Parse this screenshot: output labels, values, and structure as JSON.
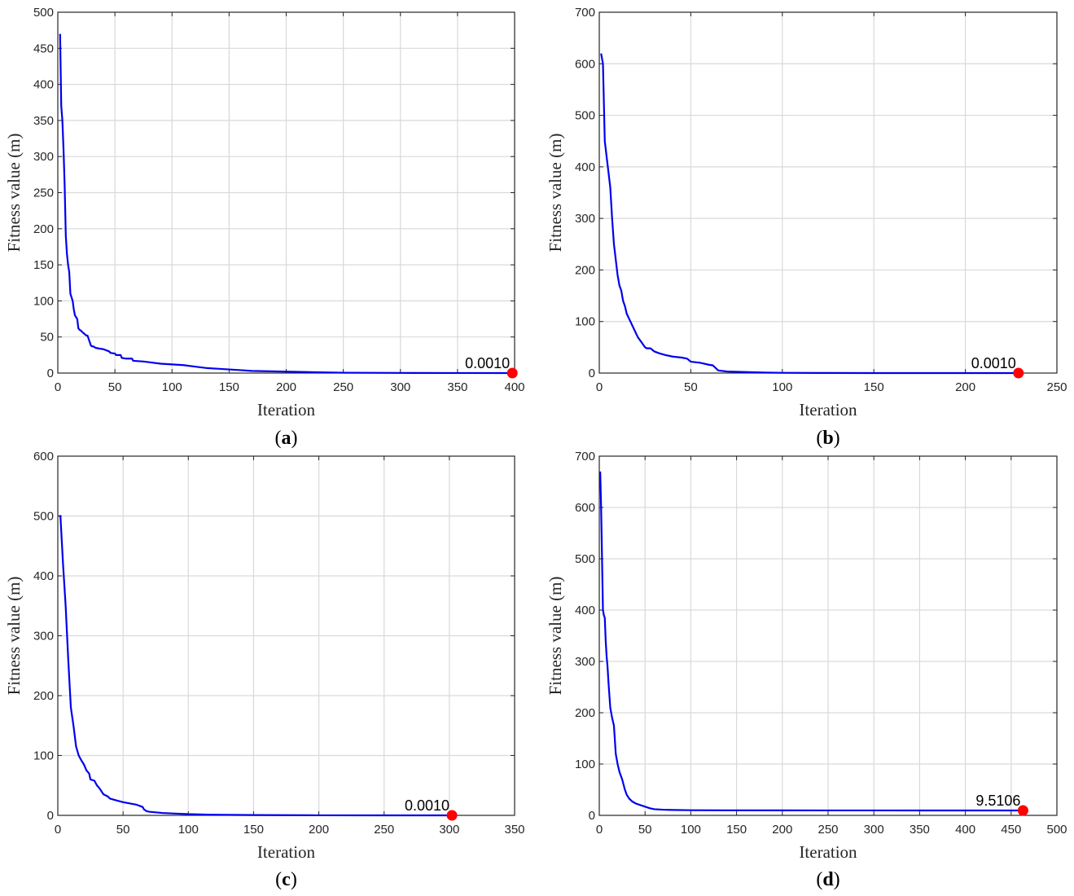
{
  "colors": {
    "line": "#0000ee",
    "marker": "#ff0000",
    "grid": "#d9d9d9",
    "axis": "#262626"
  },
  "chart_data": [
    {
      "type": "line",
      "panel_label": "a",
      "xlabel": "Iteration",
      "ylabel": "Fitness value (m)",
      "xlim": [
        0,
        400
      ],
      "ylim": [
        0,
        500
      ],
      "xticks": [
        0,
        50,
        100,
        150,
        200,
        250,
        300,
        350,
        400
      ],
      "yticks": [
        0,
        50,
        100,
        150,
        200,
        250,
        300,
        350,
        400,
        450,
        500
      ],
      "grid": true,
      "series": [
        {
          "x": [
            2,
            3,
            4,
            5,
            6,
            7,
            8,
            9,
            10,
            11,
            12,
            13,
            14,
            15,
            17,
            18,
            19,
            20,
            22,
            25,
            26,
            29,
            30,
            31,
            33,
            36,
            40,
            45,
            46,
            50,
            51,
            55,
            56,
            60,
            65,
            66,
            75,
            80,
            90,
            100,
            110,
            120,
            130,
            140,
            150,
            160,
            170,
            200,
            250,
            300,
            350,
            398
          ],
          "y": [
            470,
            370,
            350,
            310,
            260,
            190,
            165,
            150,
            140,
            110,
            105,
            100,
            88,
            80,
            75,
            62,
            60,
            59,
            56,
            52,
            52,
            38,
            37,
            37,
            35,
            34,
            33,
            30,
            28,
            27,
            25,
            25,
            21,
            20,
            20,
            17,
            16,
            15,
            13,
            12,
            11,
            9,
            7,
            6,
            5,
            4,
            3,
            2,
            0.5,
            0.2,
            0.05,
            0.001
          ]
        }
      ],
      "marker": {
        "x": 398,
        "y": 0.001,
        "label": "0.0010"
      }
    },
    {
      "type": "line",
      "panel_label": "b",
      "xlabel": "Iteration",
      "ylabel": "Fitness value (m)",
      "xlim": [
        0,
        250
      ],
      "ylim": [
        0,
        700
      ],
      "xticks": [
        0,
        50,
        100,
        150,
        200,
        250
      ],
      "yticks": [
        0,
        100,
        200,
        300,
        400,
        500,
        600,
        700
      ],
      "grid": true,
      "series": [
        {
          "x": [
            1,
            2,
            3,
            4,
            5,
            6,
            7,
            8,
            9,
            10,
            11,
            12,
            13,
            14,
            15,
            17,
            19,
            21,
            23,
            25,
            26,
            28,
            30,
            33,
            36,
            40,
            45,
            48,
            50,
            55,
            60,
            62,
            65,
            70,
            80,
            90,
            100,
            120,
            150,
            200,
            229
          ],
          "y": [
            620,
            600,
            450,
            420,
            390,
            360,
            300,
            250,
            220,
            190,
            170,
            160,
            140,
            130,
            115,
            100,
            85,
            70,
            60,
            50,
            48,
            48,
            42,
            38,
            35,
            32,
            30,
            28,
            22,
            20,
            16,
            15,
            5,
            3,
            2,
            1,
            0.5,
            0.2,
            0.05,
            0.01,
            0.001
          ]
        }
      ],
      "marker": {
        "x": 229,
        "y": 0.001,
        "label": "0.0010"
      }
    },
    {
      "type": "line",
      "panel_label": "c",
      "xlabel": "Iteration",
      "ylabel": "Fitness value (m)",
      "xlim": [
        0,
        350
      ],
      "ylim": [
        0,
        600
      ],
      "xticks": [
        0,
        50,
        100,
        150,
        200,
        250,
        300,
        350
      ],
      "yticks": [
        0,
        100,
        200,
        300,
        400,
        500,
        600
      ],
      "grid": true,
      "series": [
        {
          "x": [
            1,
            2,
            4,
            6,
            8,
            10,
            12,
            14,
            16,
            18,
            20,
            22,
            24,
            25,
            28,
            30,
            32,
            35,
            38,
            40,
            45,
            50,
            55,
            60,
            65,
            66,
            68,
            70,
            75,
            80,
            90,
            100,
            120,
            150,
            200,
            250,
            302
          ],
          "y": [
            500,
            500,
            420,
            350,
            260,
            180,
            150,
            115,
            100,
            92,
            85,
            75,
            70,
            60,
            58,
            50,
            45,
            35,
            32,
            28,
            25,
            22,
            20,
            18,
            14,
            10,
            7,
            6,
            5,
            4,
            3,
            2,
            1,
            0.5,
            0.1,
            0.01,
            0.001
          ]
        }
      ],
      "marker": {
        "x": 302,
        "y": 0.001,
        "label": "0.0010"
      }
    },
    {
      "type": "line",
      "panel_label": "d",
      "xlabel": "Iteration",
      "ylabel": "Fitness value (m)",
      "xlim": [
        0,
        500
      ],
      "ylim": [
        0,
        700
      ],
      "xticks": [
        0,
        50,
        100,
        150,
        200,
        250,
        300,
        350,
        400,
        450,
        500
      ],
      "yticks": [
        0,
        100,
        200,
        300,
        400,
        500,
        600,
        700
      ],
      "grid": true,
      "series": [
        {
          "x": [
            1,
            2,
            3,
            4,
            5,
            6,
            7,
            8,
            9,
            10,
            12,
            14,
            16,
            18,
            20,
            22,
            25,
            28,
            30,
            33,
            36,
            40,
            45,
            50,
            55,
            60,
            70,
            80,
            100,
            150,
            200,
            300,
            400,
            463
          ],
          "y": [
            670,
            600,
            500,
            400,
            390,
            385,
            340,
            310,
            290,
            260,
            210,
            190,
            175,
            120,
            100,
            85,
            70,
            50,
            40,
            32,
            27,
            23,
            20,
            17,
            14,
            12,
            11,
            10.5,
            10,
            9.8,
            9.7,
            9.6,
            9.55,
            9.5106
          ]
        }
      ],
      "marker": {
        "x": 463,
        "y": 9.5106,
        "label": "9.5106"
      }
    }
  ]
}
